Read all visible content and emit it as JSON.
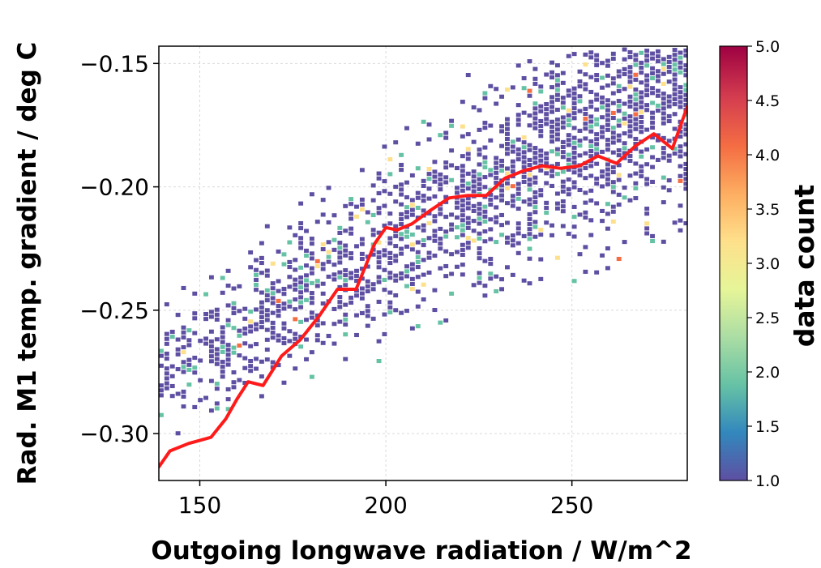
{
  "chart_data": {
    "type": "heatmap",
    "title": "",
    "xlabel": "Outgoing longwave radiation / W/m^2",
    "ylabel": "Rad. M1 temp. gradient / deg C",
    "colorbar_label": "data count",
    "xlim": [
      139,
      281
    ],
    "ylim": [
      -0.319,
      -0.143
    ],
    "xticks": [
      150,
      200,
      250
    ],
    "xtick_labels": [
      "150",
      "200",
      "250"
    ],
    "yticks": [
      -0.3,
      -0.25,
      -0.2,
      -0.15
    ],
    "ytick_labels": [
      "−0.30",
      "−0.25",
      "−0.20",
      "−0.15"
    ],
    "colorbar_range": [
      1.0,
      5.0
    ],
    "colorbar_ticks": [
      1.0,
      1.5,
      2.0,
      2.5,
      3.0,
      3.5,
      4.0,
      4.5,
      5.0
    ],
    "colorbar_tick_labels": [
      "1.0",
      "1.5",
      "2.0",
      "2.5",
      "3.0",
      "3.5",
      "4.0",
      "4.5",
      "5.0"
    ],
    "colormap": [
      "#5e4fa2",
      "#3288bd",
      "#66c2a5",
      "#abdda4",
      "#e6f598",
      "#fee08b",
      "#fdae61",
      "#f46d43",
      "#d53e4f",
      "#9e0142"
    ],
    "grid": true,
    "bin_size": {
      "x": 1.5,
      "y": 0.002
    },
    "density_model": {
      "center_intercept": -0.395,
      "center_slope": 0.00085,
      "spread": [
        0.012,
        0.028
      ],
      "fill_fraction": 0.5
    },
    "trend_line": {
      "color": "#ff1a1a",
      "x": [
        139,
        142,
        147,
        153,
        157,
        160,
        163,
        167,
        172,
        177,
        182,
        187,
        192,
        197,
        200,
        203,
        207,
        212,
        217,
        222,
        227,
        232,
        237,
        242,
        247,
        252,
        257,
        262,
        267,
        272,
        277,
        281
      ],
      "y": [
        -0.3135,
        -0.307,
        -0.304,
        -0.3015,
        -0.294,
        -0.286,
        -0.279,
        -0.2805,
        -0.2685,
        -0.262,
        -0.2525,
        -0.2415,
        -0.2415,
        -0.223,
        -0.2165,
        -0.2175,
        -0.215,
        -0.2095,
        -0.2045,
        -0.2035,
        -0.2035,
        -0.1965,
        -0.1935,
        -0.1915,
        -0.1925,
        -0.1915,
        -0.1875,
        -0.1905,
        -0.1835,
        -0.1785,
        -0.1845,
        -0.1675
      ]
    }
  }
}
